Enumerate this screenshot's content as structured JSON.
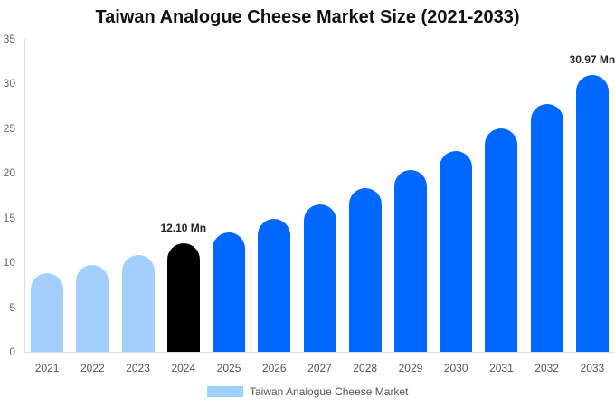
{
  "title": "Taiwan Analogue Cheese Market Size (2021-2033)",
  "legend": {
    "label": "Taiwan Analogue Cheese Market",
    "color": "#a1cfff"
  },
  "colors": {
    "historical": "#a1cfff",
    "current": "#000000",
    "forecast": "#0068ff"
  },
  "yticks": [
    "0",
    "5",
    "10",
    "15",
    "20",
    "25",
    "30",
    "35"
  ],
  "annotations": [
    {
      "year": "2024",
      "text": "12.10 Mn"
    },
    {
      "year": "2033",
      "text": "30.97 Mn"
    }
  ],
  "chart_data": {
    "type": "bar",
    "title": "Taiwan Analogue Cheese Market Size (2021-2033)",
    "xlabel": "",
    "ylabel": "",
    "ylim": [
      0,
      35
    ],
    "grid": false,
    "legend_position": "bottom",
    "categories": [
      "2021",
      "2022",
      "2023",
      "2024",
      "2025",
      "2026",
      "2027",
      "2028",
      "2029",
      "2030",
      "2031",
      "2032",
      "2033"
    ],
    "series": [
      {
        "name": "Taiwan Analogue Cheese Market",
        "values": [
          8.8,
          9.7,
          10.8,
          12.1,
          13.4,
          14.9,
          16.5,
          18.3,
          20.3,
          22.5,
          25.0,
          27.7,
          30.97
        ]
      }
    ],
    "annotations": [
      {
        "category": "2024",
        "text": "12.10 Mn"
      },
      {
        "category": "2033",
        "text": "30.97 Mn"
      }
    ]
  }
}
